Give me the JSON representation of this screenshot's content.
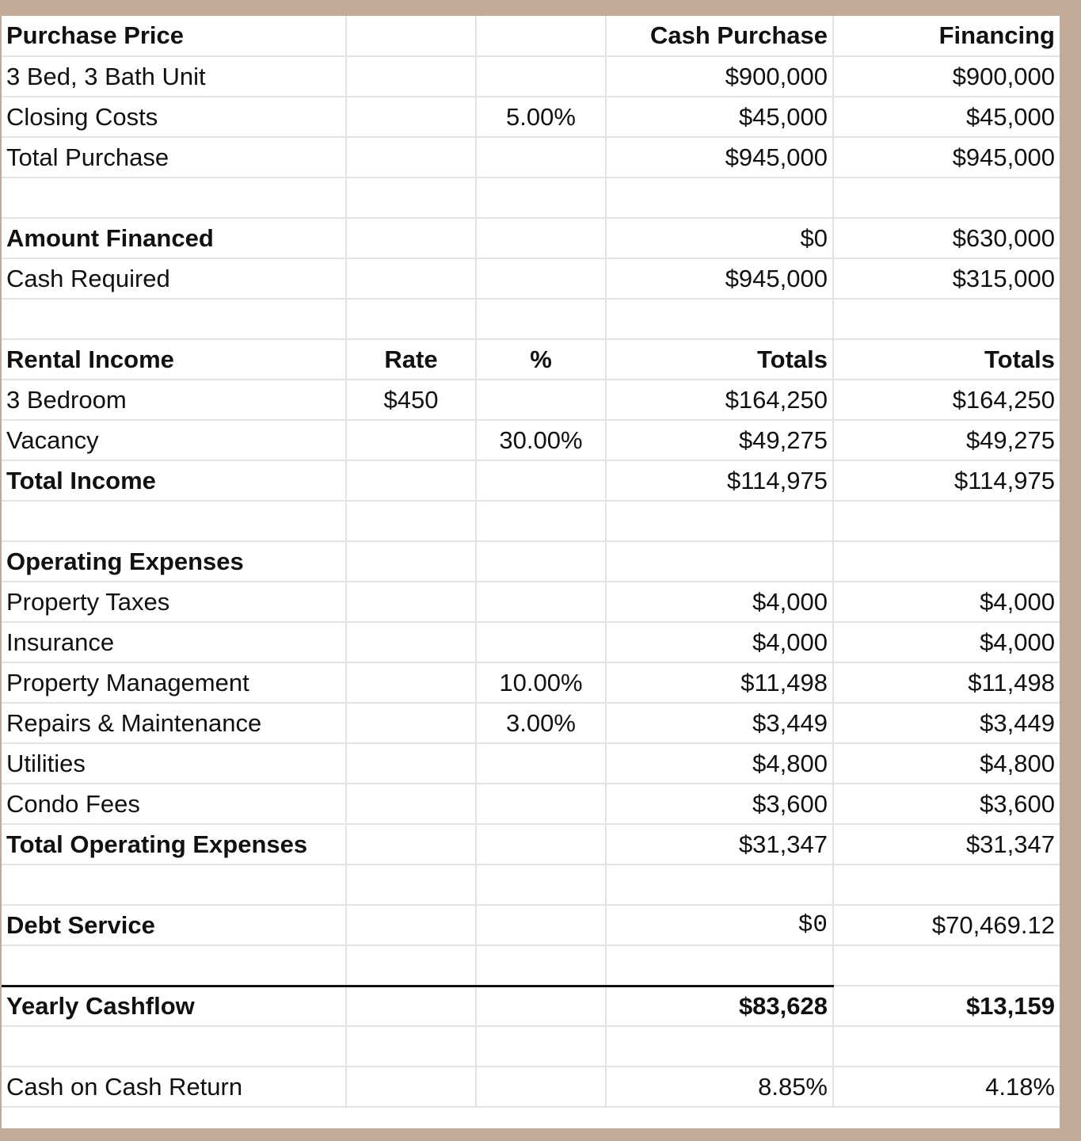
{
  "sheet": {
    "rows": [
      {
        "c1": "Purchase Price",
        "c2": "",
        "c3": "",
        "c4": "Cash Purchase",
        "c5": "Financing"
      },
      {
        "c1": "3 Bed, 3 Bath Unit",
        "c2": "",
        "c3": "",
        "c4": "$900,000",
        "c5": "$900,000"
      },
      {
        "c1": "Closing Costs",
        "c2": "",
        "c3": "5.00%",
        "c4": "$45,000",
        "c5": "$45,000"
      },
      {
        "c1": "Total Purchase",
        "c2": "",
        "c3": "",
        "c4": "$945,000",
        "c5": "$945,000"
      },
      {
        "c1": "",
        "c2": "",
        "c3": "",
        "c4": "",
        "c5": ""
      },
      {
        "c1": "Amount Financed",
        "c2": "",
        "c3": "",
        "c4": "$0",
        "c5": "$630,000"
      },
      {
        "c1": "Cash Required",
        "c2": "",
        "c3": "",
        "c4": "$945,000",
        "c5": "$315,000"
      },
      {
        "c1": "",
        "c2": "",
        "c3": "",
        "c4": "",
        "c5": ""
      },
      {
        "c1": "Rental Income",
        "c2": "Rate",
        "c3": "%",
        "c4": "Totals",
        "c5": "Totals"
      },
      {
        "c1": "3 Bedroom",
        "c2": "$450",
        "c3": "",
        "c4": "$164,250",
        "c5": "$164,250"
      },
      {
        "c1": "Vacancy",
        "c2": "",
        "c3": "30.00%",
        "c4": "$49,275",
        "c5": "$49,275"
      },
      {
        "c1": "Total Income",
        "c2": "",
        "c3": "",
        "c4": "$114,975",
        "c5": "$114,975"
      },
      {
        "c1": "",
        "c2": "",
        "c3": "",
        "c4": "",
        "c5": ""
      },
      {
        "c1": "Operating Expenses",
        "c2": "",
        "c3": "",
        "c4": "",
        "c5": ""
      },
      {
        "c1": "Property Taxes",
        "c2": "",
        "c3": "",
        "c4": "$4,000",
        "c5": "$4,000"
      },
      {
        "c1": "Insurance",
        "c2": "",
        "c3": "",
        "c4": "$4,000",
        "c5": "$4,000"
      },
      {
        "c1": "Property Management",
        "c2": "",
        "c3": "10.00%",
        "c4": "$11,498",
        "c5": "$11,498"
      },
      {
        "c1": "Repairs & Maintenance",
        "c2": "",
        "c3": "3.00%",
        "c4": "$3,449",
        "c5": "$3,449"
      },
      {
        "c1": "Utilities",
        "c2": "",
        "c3": "",
        "c4": "$4,800",
        "c5": "$4,800"
      },
      {
        "c1": "Condo Fees",
        "c2": "",
        "c3": "",
        "c4": "$3,600",
        "c5": "$3,600"
      },
      {
        "c1": "Total Operating Expenses",
        "c2": "",
        "c3": "",
        "c4": "$31,347",
        "c5": "$31,347"
      },
      {
        "c1": "",
        "c2": "",
        "c3": "",
        "c4": "",
        "c5": ""
      },
      {
        "c1": "Debt Service",
        "c2": "",
        "c3": "",
        "c4": "$0",
        "c5": "$70,469.12"
      },
      {
        "c1": "",
        "c2": "",
        "c3": "",
        "c4": "",
        "c5": ""
      },
      {
        "c1": "Yearly Cashflow",
        "c2": "",
        "c3": "",
        "c4": "$83,628",
        "c5": "$13,159"
      },
      {
        "c1": "",
        "c2": "",
        "c3": "",
        "c4": "",
        "c5": ""
      },
      {
        "c1": "Cash on Cash Return",
        "c2": "",
        "c3": "",
        "c4": "8.85%",
        "c5": "4.18%"
      }
    ]
  }
}
